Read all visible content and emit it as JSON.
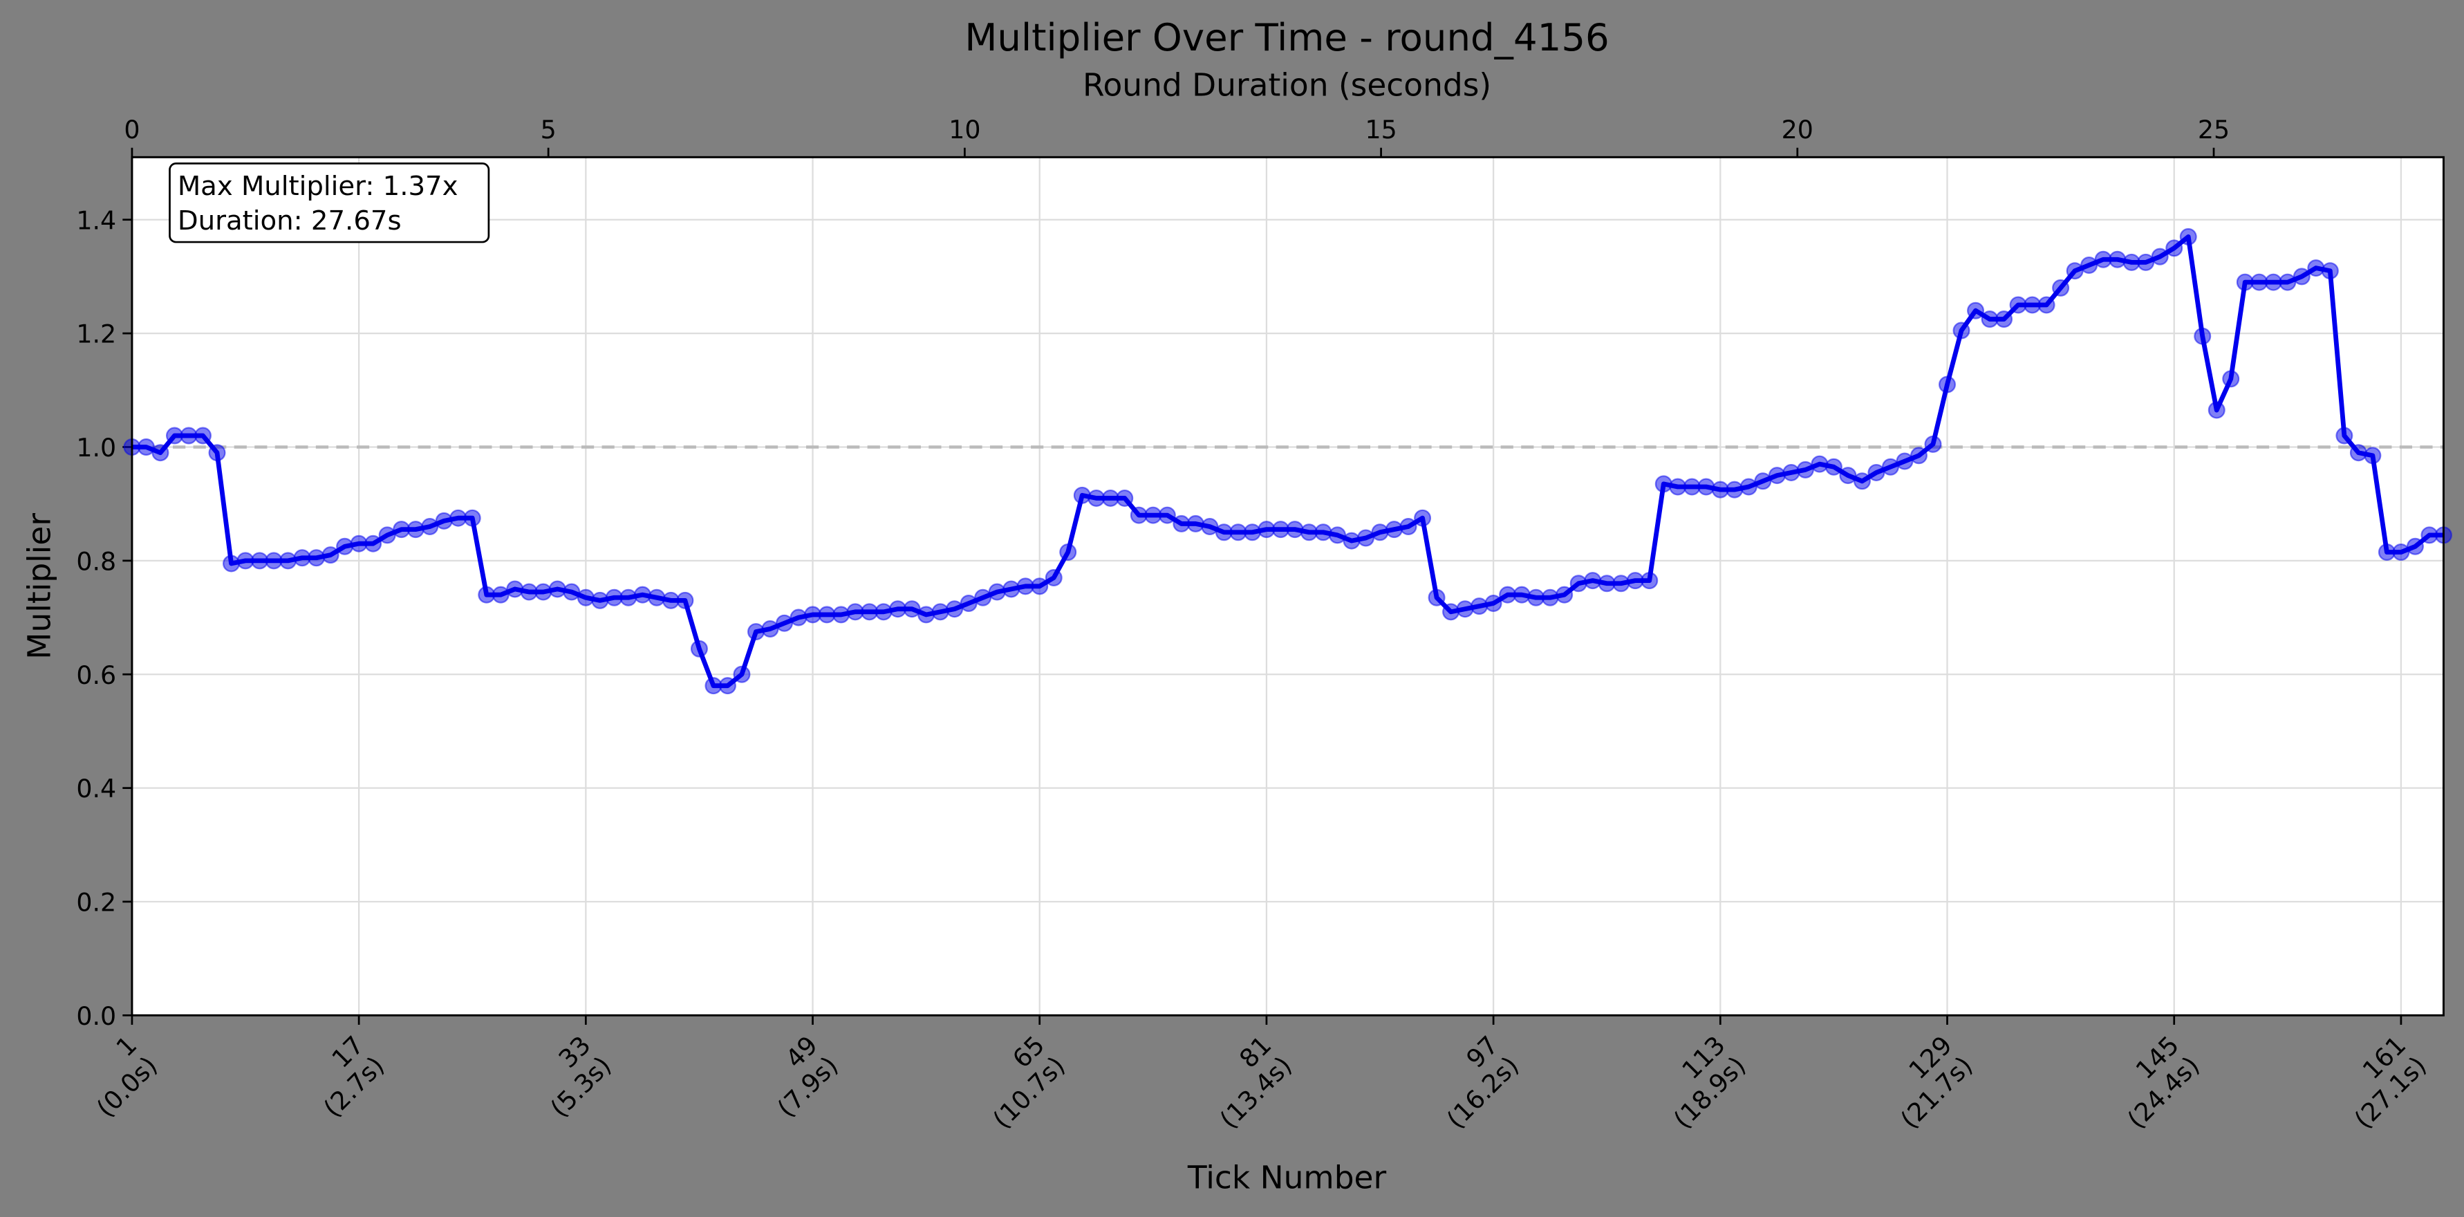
{
  "chart_data": {
    "type": "line",
    "title": "Multiplier Over Time - round_4156",
    "x_label": "Tick Number",
    "y_label": "Multiplier",
    "x2_label": "Round Duration (seconds)",
    "annotation": [
      "Max Multiplier: 1.37x",
      "Duration: 27.67s"
    ],
    "x": [
      1,
      2,
      3,
      4,
      5,
      6,
      7,
      8,
      9,
      10,
      11,
      12,
      13,
      14,
      15,
      16,
      17,
      18,
      19,
      20,
      21,
      22,
      23,
      24,
      25,
      26,
      27,
      28,
      29,
      30,
      31,
      32,
      33,
      34,
      35,
      36,
      37,
      38,
      39,
      40,
      41,
      42,
      43,
      44,
      45,
      46,
      47,
      48,
      49,
      50,
      51,
      52,
      53,
      54,
      55,
      56,
      57,
      58,
      59,
      60,
      61,
      62,
      63,
      64,
      65,
      66,
      67,
      68,
      69,
      70,
      71,
      72,
      73,
      74,
      75,
      76,
      77,
      78,
      79,
      80,
      81,
      82,
      83,
      84,
      85,
      86,
      87,
      88,
      89,
      90,
      91,
      92,
      93,
      94,
      95,
      96,
      97,
      98,
      99,
      100,
      101,
      102,
      103,
      104,
      105,
      106,
      107,
      108,
      109,
      110,
      111,
      112,
      113,
      114,
      115,
      116,
      117,
      118,
      119,
      120,
      121,
      122,
      123,
      124,
      125,
      126,
      127,
      128,
      129,
      130,
      131,
      132,
      133,
      134,
      135,
      136,
      137,
      138,
      139,
      140,
      141,
      142,
      143,
      144,
      145,
      146,
      147,
      148,
      149,
      150,
      151,
      152,
      153,
      154,
      155,
      156,
      157,
      158,
      159,
      160,
      161,
      162,
      163,
      164
    ],
    "series": [
      {
        "color": "#0000ee",
        "values": [
          1.0,
          1.0,
          0.99,
          1.02,
          1.02,
          1.02,
          0.99,
          0.795,
          0.8,
          0.8,
          0.8,
          0.8,
          0.805,
          0.805,
          0.81,
          0.825,
          0.83,
          0.83,
          0.845,
          0.855,
          0.855,
          0.86,
          0.87,
          0.875,
          0.875,
          0.74,
          0.74,
          0.75,
          0.745,
          0.745,
          0.75,
          0.745,
          0.735,
          0.73,
          0.735,
          0.735,
          0.74,
          0.735,
          0.73,
          0.73,
          0.645,
          0.58,
          0.58,
          0.6,
          0.675,
          0.68,
          0.69,
          0.7,
          0.705,
          0.705,
          0.705,
          0.71,
          0.71,
          0.71,
          0.715,
          0.715,
          0.705,
          0.71,
          0.715,
          0.725,
          0.735,
          0.745,
          0.75,
          0.755,
          0.755,
          0.77,
          0.815,
          0.915,
          0.91,
          0.91,
          0.91,
          0.88,
          0.88,
          0.88,
          0.865,
          0.865,
          0.86,
          0.85,
          0.85,
          0.85,
          0.855,
          0.855,
          0.855,
          0.85,
          0.85,
          0.845,
          0.835,
          0.84,
          0.85,
          0.855,
          0.86,
          0.875,
          0.735,
          0.71,
          0.715,
          0.72,
          0.725,
          0.74,
          0.74,
          0.735,
          0.735,
          0.74,
          0.76,
          0.765,
          0.76,
          0.76,
          0.765,
          0.765,
          0.935,
          0.93,
          0.93,
          0.93,
          0.925,
          0.925,
          0.93,
          0.94,
          0.95,
          0.955,
          0.96,
          0.97,
          0.965,
          0.95,
          0.94,
          0.955,
          0.965,
          0.975,
          0.985,
          1.005,
          1.11,
          1.205,
          1.24,
          1.225,
          1.225,
          1.25,
          1.25,
          1.25,
          1.28,
          1.31,
          1.32,
          1.33,
          1.33,
          1.325,
          1.325,
          1.335,
          1.35,
          1.37,
          1.195,
          1.065,
          1.12,
          1.29,
          1.29,
          1.29,
          1.29,
          1.3,
          1.315,
          1.31,
          1.02,
          0.99,
          0.985,
          0.815,
          0.815,
          0.825,
          0.845,
          0.845
        ]
      }
    ],
    "xlim": [
      1,
      164
    ],
    "xticks": [
      {
        "value": 1,
        "label": [
          "1",
          "(0.0s)"
        ]
      },
      {
        "value": 17,
        "label": [
          "17",
          "(2.7s)"
        ]
      },
      {
        "value": 33,
        "label": [
          "33",
          "(5.3s)"
        ]
      },
      {
        "value": 49,
        "label": [
          "49",
          "(7.9s)"
        ]
      },
      {
        "value": 65,
        "label": [
          "65",
          "(10.7s)"
        ]
      },
      {
        "value": 81,
        "label": [
          "81",
          "(13.4s)"
        ]
      },
      {
        "value": 97,
        "label": [
          "97",
          "(16.2s)"
        ]
      },
      {
        "value": 113,
        "label": [
          "113",
          "(18.9s)"
        ]
      },
      {
        "value": 129,
        "label": [
          "129",
          "(21.7s)"
        ]
      },
      {
        "value": 145,
        "label": [
          "145",
          "(24.4s)"
        ]
      },
      {
        "value": 161,
        "label": [
          "161",
          "(27.1s)"
        ]
      }
    ],
    "x2lim": [
      0,
      27.76
    ],
    "x2ticks": [
      0,
      5,
      10,
      15,
      20,
      25
    ],
    "ylim": [
      0,
      1.51
    ],
    "yticks": [
      {
        "value": 0,
        "label": "0.0"
      },
      {
        "value": 0.2,
        "label": "0.2"
      },
      {
        "value": 0.4,
        "label": "0.4"
      },
      {
        "value": 0.6,
        "label": "0.6"
      },
      {
        "value": 0.8,
        "label": "0.8"
      },
      {
        "value": 1.0,
        "label": "1.0"
      },
      {
        "value": 1.2,
        "label": "1.2"
      },
      {
        "value": 1.4,
        "label": "1.4"
      }
    ],
    "reference_line": 1.0,
    "grid": true
  }
}
